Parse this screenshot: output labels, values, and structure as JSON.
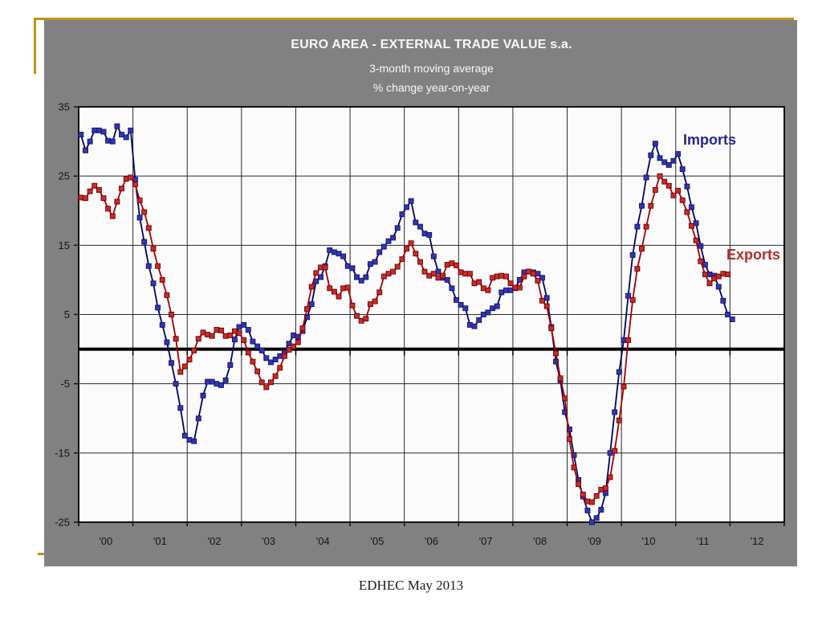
{
  "slide": {
    "footer": "EDHEC May 2013"
  },
  "chart": {
    "title": "EURO AREA - EXTERNAL TRADE VALUE s.a.",
    "subtitle1": "3-month moving average",
    "subtitle2": "% change year-on-year",
    "labels": {
      "imports": "Imports",
      "exports": "Exports"
    },
    "accent_gold": "#c09016",
    "panel_gray": "#818181"
  },
  "chart_data": {
    "type": "line",
    "title": "EURO AREA - EXTERNAL TRADE VALUE s.a.",
    "subtitle": [
      "3-month moving average",
      "% change year-on-year"
    ],
    "x_frequency": "monthly",
    "x_start": "2000-01",
    "x_tick_labels": [
      "'00",
      "'01",
      "'02",
      "'03",
      "'04",
      "'05",
      "'06",
      "'07",
      "'08",
      "'09",
      "'10",
      "'11",
      "'12"
    ],
    "y_ticks": [
      35,
      25,
      15,
      5,
      -5,
      -15,
      -25
    ],
    "ylim": [
      -25,
      35
    ],
    "grid": true,
    "zero_line": true,
    "legend_position": "inside-right",
    "series": [
      {
        "name": "Imports",
        "color": "#3134bd",
        "marker_edge": "#141452",
        "line_color": "#000066",
        "label_color": "#26268e",
        "values": [
          31.0,
          28.7,
          30.0,
          31.6,
          31.6,
          31.4,
          30.1,
          30.0,
          32.2,
          31.0,
          30.6,
          31.6,
          24.5,
          19.0,
          15.5,
          12.0,
          9.5,
          6.0,
          3.5,
          1.0,
          -2.0,
          -5.0,
          -8.5,
          -12.5,
          -13.1,
          -13.3,
          -10.0,
          -6.7,
          -4.7,
          -4.7,
          -5.0,
          -5.2,
          -4.5,
          -2.3,
          1.4,
          3.2,
          3.5,
          2.8,
          1.1,
          0.4,
          -0.2,
          -1.3,
          -1.9,
          -1.5,
          -1.0,
          -0.5,
          0.8,
          2.0,
          1.8,
          2.6,
          4.6,
          6.5,
          9.8,
          10.4,
          12.0,
          14.3,
          14.0,
          13.8,
          13.4,
          12.0,
          11.7,
          10.4,
          9.9,
          10.4,
          12.3,
          12.6,
          14.0,
          14.8,
          15.6,
          16.1,
          17.5,
          19.5,
          20.5,
          21.4,
          18.3,
          17.7,
          16.7,
          16.5,
          13.4,
          11.2,
          10.3,
          10.0,
          8.8,
          7.1,
          6.4,
          5.9,
          3.5,
          3.3,
          4.2,
          5.0,
          5.3,
          5.9,
          6.2,
          8.2,
          8.5,
          8.5,
          8.8,
          10.0,
          11.1,
          11.2,
          11.1,
          10.9,
          10.3,
          7.4,
          3.2,
          -1.8,
          -4.5,
          -9.1,
          -11.6,
          -15.3,
          -18.9,
          -21.3,
          -23.3,
          -25.0,
          -24.4,
          -23.2,
          -20.8,
          -15.0,
          -9.1,
          -3.3,
          1.3,
          7.7,
          13.6,
          17.7,
          20.7,
          24.8,
          28.0,
          29.7,
          27.6,
          27.0,
          26.6,
          27.2,
          28.2,
          26.0,
          23.5,
          20.5,
          18.2,
          14.9,
          12.2,
          10.8,
          10.6,
          9.0,
          7.0,
          5.0,
          4.3
        ]
      },
      {
        "name": "Exports",
        "color": "#c92a2a",
        "marker_edge": "#6b0000",
        "line_color": "#a00000",
        "label_color": "#b03030",
        "values": [
          21.9,
          21.8,
          22.8,
          23.6,
          23.0,
          21.8,
          20.3,
          19.2,
          21.3,
          23.2,
          24.6,
          24.8,
          23.8,
          21.5,
          19.8,
          17.5,
          14.5,
          12.0,
          10.0,
          7.8,
          5.0,
          1.5,
          -3.3,
          -2.5,
          -1.5,
          -0.2,
          1.5,
          2.4,
          2.1,
          1.9,
          2.8,
          2.7,
          1.9,
          2.0,
          2.6,
          2.3,
          1.3,
          -0.5,
          -1.8,
          -3.2,
          -4.8,
          -5.5,
          -4.8,
          -3.9,
          -2.7,
          -1.0,
          -0.1,
          0.4,
          1.0,
          3.0,
          5.8,
          9.0,
          11.0,
          11.8,
          11.8,
          8.8,
          8.3,
          7.6,
          8.8,
          8.9,
          6.3,
          4.8,
          4.1,
          4.4,
          6.5,
          6.9,
          8.2,
          10.5,
          10.9,
          11.2,
          11.9,
          13.0,
          14.5,
          15.3,
          13.8,
          12.6,
          11.2,
          10.6,
          10.9,
          10.3,
          10.6,
          12.2,
          12.4,
          12.1,
          11.1,
          10.9,
          10.9,
          9.5,
          9.7,
          8.8,
          8.5,
          10.3,
          10.5,
          10.6,
          10.5,
          9.5,
          8.9,
          8.9,
          10.5,
          11.2,
          10.9,
          9.9,
          7.0,
          6.2,
          3.0,
          -0.6,
          -4.2,
          -7.1,
          -13.0,
          -17.1,
          -19.5,
          -21.0,
          -22.0,
          -22.1,
          -21.2,
          -20.3,
          -20.1,
          -18.5,
          -14.7,
          -10.3,
          -5.4,
          1.3,
          7.1,
          11.6,
          14.5,
          17.7,
          20.7,
          23.0,
          25.0,
          24.2,
          23.6,
          22.2,
          22.9,
          21.5,
          19.8,
          17.8,
          15.7,
          12.7,
          10.8,
          9.5,
          10.2,
          10.5,
          10.9,
          10.8
        ]
      }
    ]
  }
}
